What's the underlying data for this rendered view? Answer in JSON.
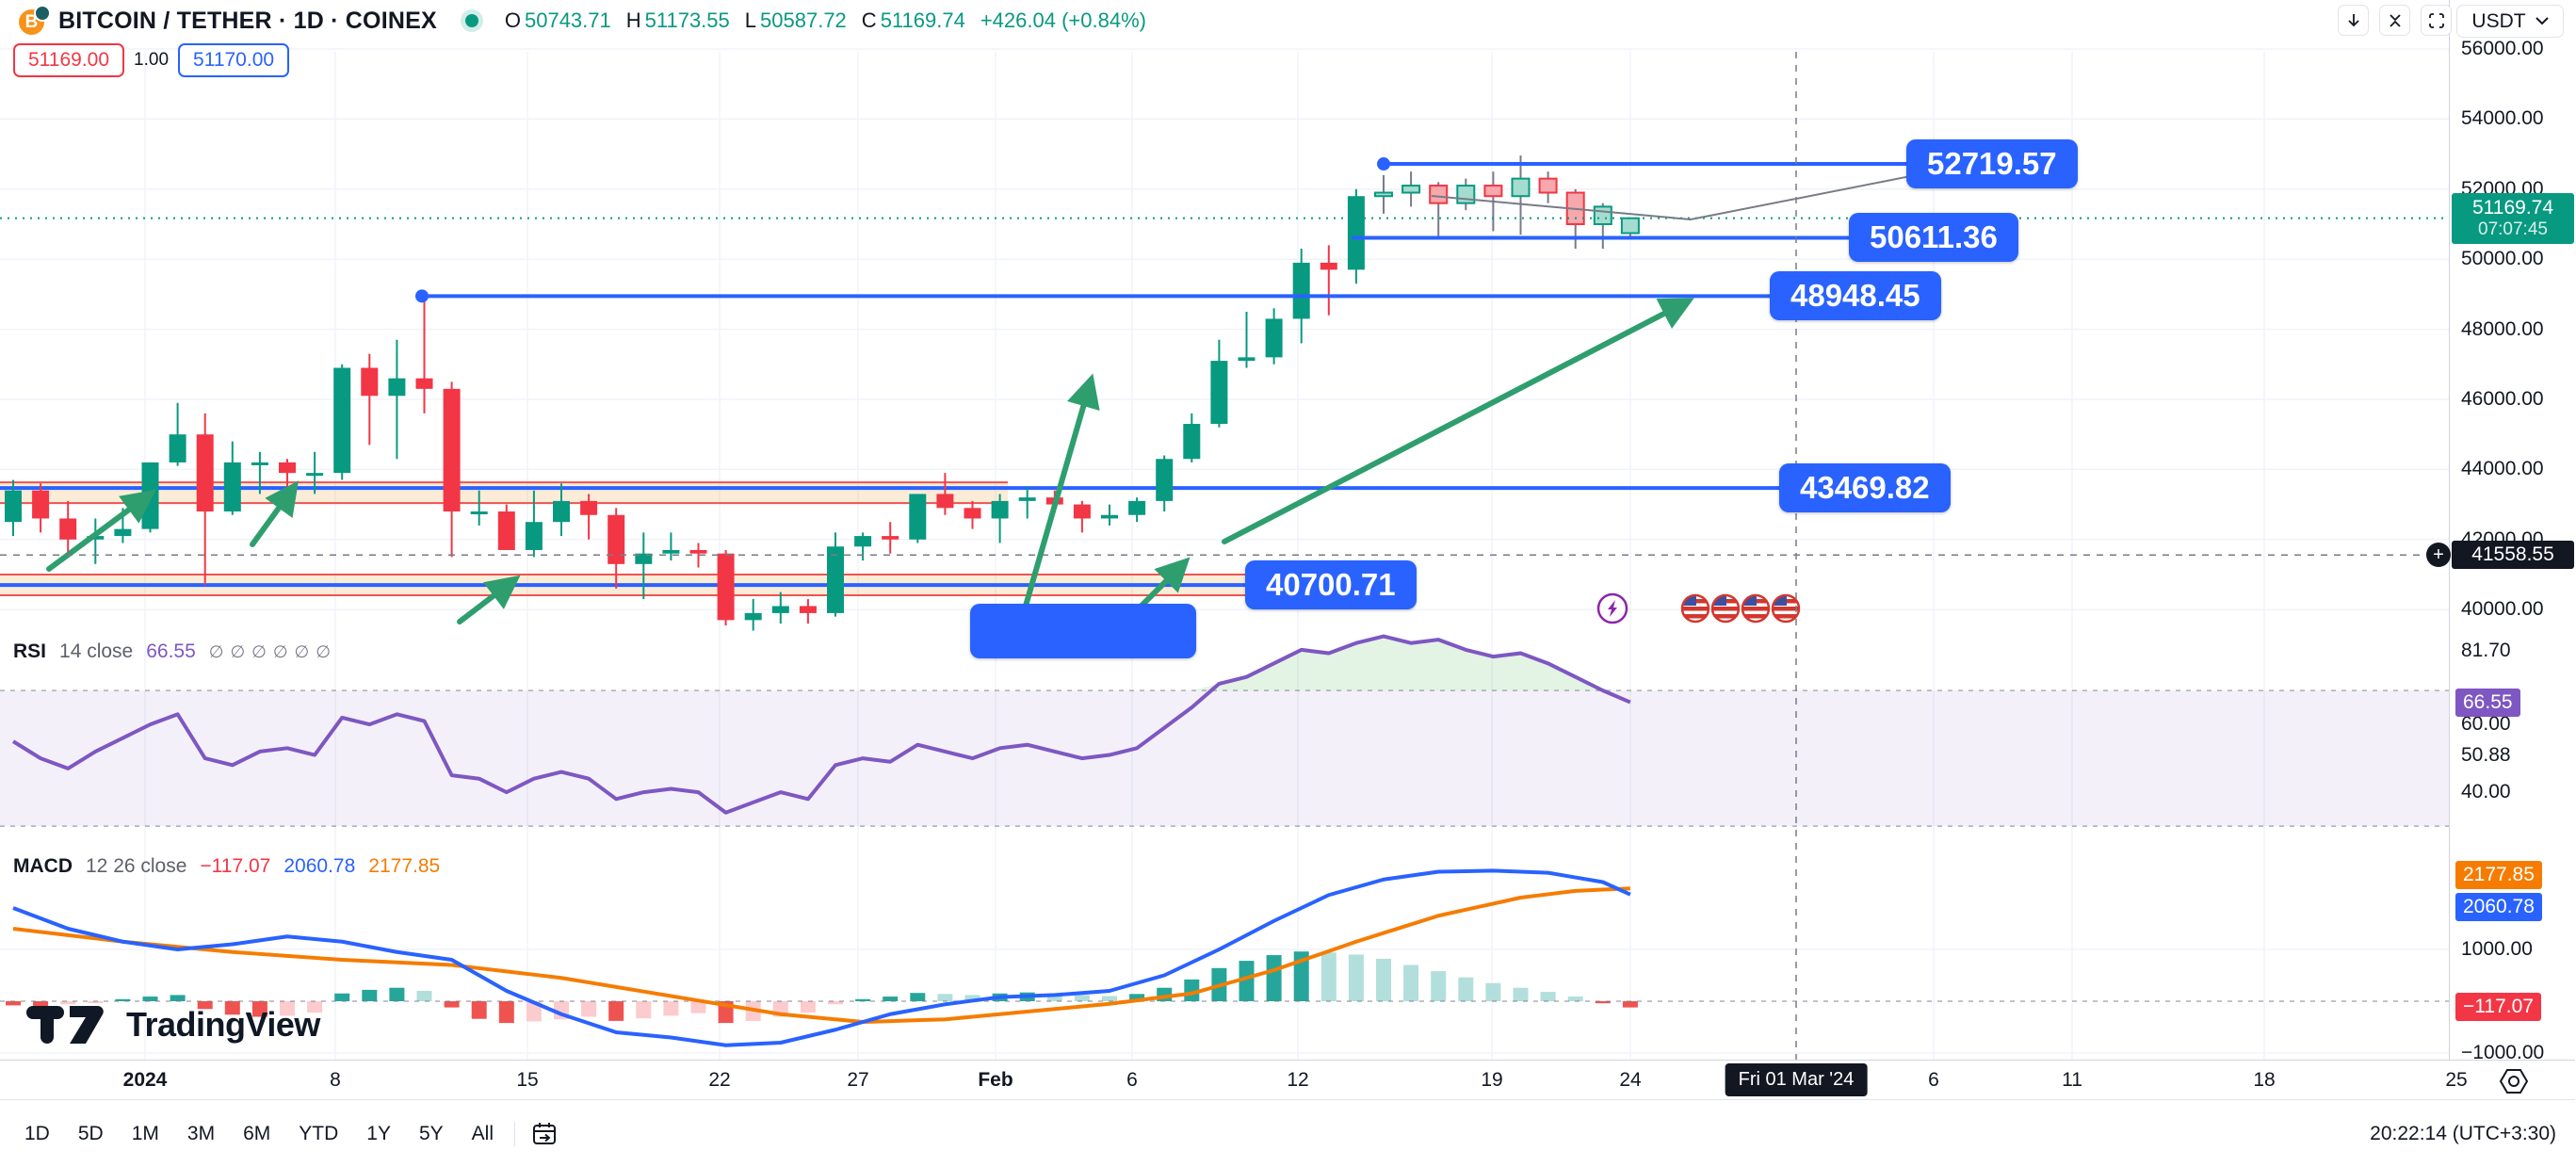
{
  "header": {
    "title": "BITCOIN / TETHER · 1D · COINEX",
    "ohlc": [
      {
        "k": "O",
        "v": "50743.71"
      },
      {
        "k": "H",
        "v": "51173.55"
      },
      {
        "k": "L",
        "v": "50587.72"
      },
      {
        "k": "C",
        "v": "51169.74"
      }
    ],
    "change": "+426.04 (+0.84%)",
    "bid": "51169.00",
    "spread": "1.00",
    "ask": "51170.00"
  },
  "top_right": {
    "currency": "USDT"
  },
  "price_scale": {
    "ticks": [
      {
        "p": 56000,
        "label": "56000.00"
      },
      {
        "p": 54000,
        "label": "54000.00"
      },
      {
        "p": 52000,
        "label": "52000.00"
      },
      {
        "p": 50000,
        "label": "50000.00"
      },
      {
        "p": 48000,
        "label": "48000.00"
      },
      {
        "p": 46000,
        "label": "46000.00"
      },
      {
        "p": 44000,
        "label": "44000.00"
      },
      {
        "p": 42000,
        "label": "42000.00"
      },
      {
        "p": 40000,
        "label": "40000.00"
      }
    ],
    "current": {
      "price": "51169.74",
      "countdown": "07:07:45",
      "value": 51169.74
    },
    "crosshair": {
      "label": "41558.55",
      "value": 41558.55
    }
  },
  "rsi": {
    "title": "RSI",
    "params": "14 close",
    "value": "66.55",
    "value_num": 66.55,
    "ticks": [
      {
        "v": 81.7,
        "label": "81.70"
      },
      {
        "v": 60,
        "label": "60.00"
      },
      {
        "v": 50.88,
        "label": "50.88"
      },
      {
        "v": 40,
        "label": "40.00"
      }
    ],
    "band": [
      30,
      70
    ]
  },
  "macd": {
    "title": "MACD",
    "params": "12 26 close",
    "hist_label": "−117.07",
    "macd_label": "2060.78",
    "signal_label": "2177.85",
    "hist_value": -117.07,
    "macd_value": 2060.78,
    "signal_value": 2177.85,
    "ticks": [
      {
        "v": 1000,
        "label": "1000.00"
      },
      {
        "v": -1000,
        "label": "−1000.00"
      }
    ]
  },
  "time_axis": {
    "ticks": [
      {
        "x": 154,
        "label": "2024",
        "bold": true
      },
      {
        "x": 356,
        "label": "8"
      },
      {
        "x": 560,
        "label": "15"
      },
      {
        "x": 764,
        "label": "22"
      },
      {
        "x": 911,
        "label": "27"
      },
      {
        "x": 1057,
        "label": "Feb",
        "bold": true
      },
      {
        "x": 1202,
        "label": "6"
      },
      {
        "x": 1378,
        "label": "12"
      },
      {
        "x": 1584,
        "label": "19"
      },
      {
        "x": 1731,
        "label": "24"
      },
      {
        "x": 2053,
        "label": "6"
      },
      {
        "x": 2200,
        "label": "11"
      },
      {
        "x": 2404,
        "label": "18"
      },
      {
        "x": 2608,
        "label": "25"
      }
    ],
    "tooltip": {
      "label": "Fri 01 Mar '24",
      "x": 1907
    }
  },
  "toolbar": {
    "ranges": [
      "1D",
      "5D",
      "1M",
      "3M",
      "6M",
      "YTD",
      "1Y",
      "5Y",
      "All"
    ],
    "timestamp": "20:22:14 (UTC+3:30)"
  },
  "watermark": "TradingView",
  "colors": {
    "up": "#089981",
    "down": "#f23645",
    "pale_up_fill": "#a5dcd0",
    "pale_down_fill": "#f6a8ac",
    "blue": "#2962ff",
    "purple": "#7e57c2",
    "orange": "#f57c00",
    "hist_up": "#26a69a",
    "hist_up_pale": "#b2dfdb",
    "hist_down": "#ef5350",
    "hist_down_pale": "#fccbcd",
    "grid": "#f0f3fa",
    "axis_border": "#d1d4dc",
    "crosshair": "#787b86",
    "zone_fill": "rgba(238,168,76,0.22)",
    "zone_border": "#ef5350",
    "arrow": "#2f9e6e",
    "dark": "#131722"
  },
  "chart_data": {
    "type": "candlestick",
    "title": "BITCOIN / TETHER 1D COINEX",
    "ylim": [
      39330,
      55900
    ],
    "pale_from": 50,
    "candles": [
      [
        42.5,
        43.7,
        42.1,
        43.4
      ],
      [
        43.4,
        43.6,
        42.2,
        42.6
      ],
      [
        42.6,
        43.1,
        41.5,
        42.0
      ],
      [
        42.0,
        42.6,
        41.3,
        42.1
      ],
      [
        42.1,
        42.9,
        41.9,
        42.3
      ],
      [
        42.3,
        44.2,
        42.2,
        44.2
      ],
      [
        44.2,
        45.9,
        44.1,
        45.0
      ],
      [
        45.0,
        45.6,
        40.7,
        42.8
      ],
      [
        42.8,
        44.8,
        42.7,
        44.2
      ],
      [
        44.2,
        44.5,
        43.3,
        44.2
      ],
      [
        44.2,
        44.3,
        43.4,
        43.9
      ],
      [
        43.9,
        44.5,
        43.3,
        43.9
      ],
      [
        43.9,
        47.0,
        43.7,
        46.9
      ],
      [
        46.9,
        47.3,
        44.7,
        46.1
      ],
      [
        46.1,
        47.7,
        44.3,
        46.6
      ],
      [
        46.6,
        48.9,
        45.6,
        46.3
      ],
      [
        46.3,
        46.5,
        41.5,
        42.8
      ],
      [
        42.8,
        43.4,
        42.4,
        42.8
      ],
      [
        42.8,
        43.0,
        41.7,
        41.7
      ],
      [
        41.7,
        43.4,
        41.5,
        42.5
      ],
      [
        42.5,
        43.6,
        42.1,
        43.1
      ],
      [
        43.1,
        43.3,
        42.0,
        42.7
      ],
      [
        42.7,
        42.9,
        40.6,
        41.3
      ],
      [
        41.3,
        42.2,
        40.3,
        41.6
      ],
      [
        41.6,
        42.2,
        41.4,
        41.7
      ],
      [
        41.7,
        41.9,
        41.2,
        41.6
      ],
      [
        41.6,
        41.7,
        39.55,
        39.7
      ],
      [
        39.7,
        40.3,
        39.4,
        39.9
      ],
      [
        39.9,
        40.5,
        39.6,
        40.1
      ],
      [
        40.1,
        40.3,
        39.6,
        39.9
      ],
      [
        39.9,
        42.2,
        39.8,
        41.8
      ],
      [
        41.8,
        42.2,
        41.4,
        42.1
      ],
      [
        42.1,
        42.5,
        41.6,
        42.0
      ],
      [
        42.0,
        43.3,
        41.9,
        43.3
      ],
      [
        43.3,
        43.9,
        42.7,
        42.9
      ],
      [
        42.9,
        43.1,
        42.3,
        42.6
      ],
      [
        42.6,
        43.3,
        41.9,
        43.1
      ],
      [
        43.1,
        43.5,
        42.6,
        43.2
      ],
      [
        43.2,
        43.4,
        42.9,
        43.0
      ],
      [
        43.0,
        43.1,
        42.2,
        42.6
      ],
      [
        42.6,
        43.0,
        42.4,
        42.7
      ],
      [
        42.7,
        43.2,
        42.5,
        43.1
      ],
      [
        43.1,
        44.4,
        42.8,
        44.3
      ],
      [
        44.3,
        45.6,
        44.2,
        45.3
      ],
      [
        45.3,
        47.7,
        45.2,
        47.1
      ],
      [
        47.1,
        48.5,
        46.9,
        47.2
      ],
      [
        47.2,
        48.6,
        47.0,
        48.3
      ],
      [
        48.3,
        50.3,
        47.6,
        49.9
      ],
      [
        49.9,
        50.4,
        48.4,
        49.7
      ],
      [
        49.7,
        52.0,
        49.3,
        51.8
      ],
      [
        51.8,
        52.4,
        51.3,
        51.9
      ],
      [
        51.9,
        52.5,
        51.5,
        52.1
      ],
      [
        52.1,
        52.2,
        50.6,
        51.6
      ],
      [
        51.6,
        52.3,
        51.4,
        52.1
      ],
      [
        52.1,
        52.5,
        50.8,
        51.8
      ],
      [
        51.8,
        52.96,
        50.7,
        52.3
      ],
      [
        52.3,
        52.5,
        51.6,
        51.9
      ],
      [
        51.9,
        52.0,
        50.3,
        51.0
      ],
      [
        51.0,
        51.6,
        50.3,
        51.5
      ],
      [
        50.744,
        51.174,
        50.588,
        51.17
      ]
    ],
    "levels": [
      {
        "label": "52719.57",
        "price": 52719.57,
        "x1": 1469,
        "x2": 2024,
        "dot": true,
        "label_x": 2024,
        "under": false
      },
      {
        "label": "50611.36",
        "price": 50611.36,
        "x1": 1435,
        "x2": 1963,
        "dot": false,
        "label_x": 1963,
        "under": false
      },
      {
        "label": "48948.45",
        "price": 48948.45,
        "x1": 448,
        "x2": 1879,
        "dot": true,
        "label_x": 1879,
        "under": false
      },
      {
        "label": "43469.82",
        "price": 43469.82,
        "x1": 0,
        "x2": 1889,
        "dot": false,
        "label_x": 1889,
        "under": true
      },
      {
        "label": "40700.71",
        "price": 40700.71,
        "x1": 0,
        "x2": 1322,
        "dot": false,
        "label_x": 1322,
        "under": true
      }
    ],
    "partial_label": {
      "x": 1030,
      "w": 196,
      "y": 648
    },
    "zones": [
      {
        "p1": 43630,
        "p2": 43040,
        "x1": 0,
        "x2": 1070
      },
      {
        "p1": 41000,
        "p2": 40410,
        "x1": 0,
        "x2": 1322
      }
    ],
    "arrows": [
      [
        52,
        604,
        156,
        527
      ],
      [
        268,
        578,
        310,
        520
      ],
      [
        488,
        660,
        543,
        618
      ],
      [
        1195,
        660,
        1255,
        600
      ],
      [
        1085,
        657,
        1157,
        408
      ],
      [
        1300,
        575,
        1788,
        322
      ]
    ],
    "trendline": [
      [
        1520,
        208
      ],
      [
        1795,
        233
      ],
      [
        2115,
        170
      ]
    ],
    "markers": {
      "lightning": {
        "x": 1712,
        "y": 646
      },
      "flags": [
        1800,
        1832,
        1864,
        1896
      ],
      "flag_y": 646
    },
    "rsi_values": [
      55,
      50,
      47,
      52,
      56,
      60,
      63,
      50,
      48,
      52,
      53,
      51,
      62,
      60,
      63,
      61,
      45,
      44,
      40,
      44,
      46,
      44,
      38,
      40,
      41,
      40,
      34,
      37,
      40,
      38,
      48,
      50,
      49,
      54,
      52,
      50,
      53,
      54,
      52,
      50,
      51,
      53,
      59,
      65,
      72,
      74,
      78,
      82,
      81,
      84,
      86,
      84,
      85,
      82,
      80,
      81,
      78,
      74,
      70,
      66.55
    ],
    "macd_line": [
      [
        0,
        1800
      ],
      [
        2,
        1400
      ],
      [
        4,
        1150
      ],
      [
        6,
        1000
      ],
      [
        8,
        1100
      ],
      [
        10,
        1250
      ],
      [
        12,
        1150
      ],
      [
        14,
        950
      ],
      [
        16,
        800
      ],
      [
        18,
        200
      ],
      [
        20,
        -250
      ],
      [
        22,
        -600
      ],
      [
        24,
        -700
      ],
      [
        26,
        -850
      ],
      [
        28,
        -800
      ],
      [
        30,
        -550
      ],
      [
        32,
        -250
      ],
      [
        34,
        -60
      ],
      [
        36,
        80
      ],
      [
        38,
        120
      ],
      [
        40,
        200
      ],
      [
        42,
        500
      ],
      [
        44,
        1000
      ],
      [
        46,
        1550
      ],
      [
        48,
        2050
      ],
      [
        50,
        2350
      ],
      [
        52,
        2500
      ],
      [
        54,
        2520
      ],
      [
        56,
        2480
      ],
      [
        58,
        2300
      ],
      [
        59,
        2061
      ]
    ],
    "signal_line": [
      [
        0,
        1400
      ],
      [
        4,
        1150
      ],
      [
        8,
        950
      ],
      [
        12,
        800
      ],
      [
        16,
        700
      ],
      [
        20,
        450
      ],
      [
        24,
        100
      ],
      [
        28,
        -250
      ],
      [
        31,
        -400
      ],
      [
        34,
        -350
      ],
      [
        37,
        -200
      ],
      [
        40,
        -50
      ],
      [
        43,
        150
      ],
      [
        46,
        600
      ],
      [
        49,
        1150
      ],
      [
        52,
        1650
      ],
      [
        55,
        2000
      ],
      [
        57,
        2130
      ],
      [
        59,
        2178
      ]
    ],
    "hist": [
      -80,
      -120,
      -60,
      -30,
      40,
      90,
      120,
      -150,
      -260,
      -300,
      -280,
      -220,
      150,
      220,
      260,
      200,
      -120,
      -340,
      -420,
      -390,
      -350,
      -300,
      -380,
      -330,
      -280,
      -230,
      -420,
      -380,
      -300,
      -220,
      -60,
      40,
      90,
      160,
      140,
      120,
      150,
      170,
      150,
      120,
      100,
      140,
      260,
      420,
      640,
      780,
      890,
      960,
      940,
      900,
      820,
      700,
      580,
      460,
      350,
      260,
      180,
      90,
      -40,
      -120
    ],
    "crosshair": {
      "x": 1907,
      "price": 41558.55
    }
  }
}
